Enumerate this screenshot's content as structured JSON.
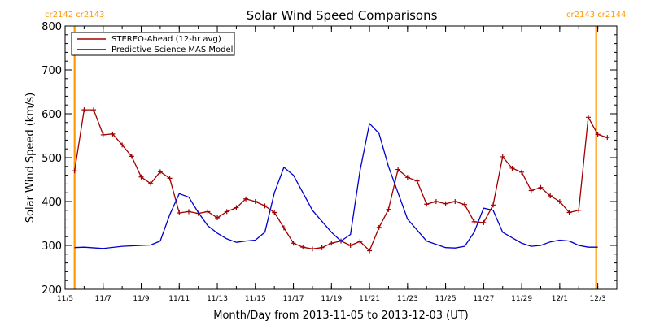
{
  "chart_data": {
    "type": "line",
    "title": "Solar Wind Speed Comparisons",
    "xlabel": "Month/Day from 2013-11-05 to 2013-12-03 (UT)",
    "ylabel": "Solar Wind Speed (km/s)",
    "xlim": [
      "2013-11-05",
      "2013-12-04"
    ],
    "ylim": [
      200,
      800
    ],
    "grid": false,
    "legend_position": "top-left",
    "x_ticks": [
      {
        "date": "2013-11-05",
        "label": "11/5"
      },
      {
        "date": "2013-11-07",
        "label": "11/7"
      },
      {
        "date": "2013-11-09",
        "label": "11/9"
      },
      {
        "date": "2013-11-11",
        "label": "11/11"
      },
      {
        "date": "2013-11-13",
        "label": "11/13"
      },
      {
        "date": "2013-11-15",
        "label": "11/15"
      },
      {
        "date": "2013-11-17",
        "label": "11/17"
      },
      {
        "date": "2013-11-19",
        "label": "11/19"
      },
      {
        "date": "2013-11-21",
        "label": "11/21"
      },
      {
        "date": "2013-11-23",
        "label": "11/23"
      },
      {
        "date": "2013-11-25",
        "label": "11/25"
      },
      {
        "date": "2013-11-27",
        "label": "11/27"
      },
      {
        "date": "2013-11-29",
        "label": "11/29"
      },
      {
        "date": "2013-12-01",
        "label": "12/1"
      },
      {
        "date": "2013-12-03",
        "label": "12/3"
      }
    ],
    "y_ticks": [
      200,
      300,
      400,
      500,
      600,
      700,
      800
    ],
    "carrington_markers": [
      {
        "date": "2013-11-05 12:00",
        "labels": [
          "cr2142",
          "cr2143"
        ]
      },
      {
        "date": "2013-12-02 22:00",
        "labels": [
          "cr2143",
          "cr2144"
        ]
      }
    ],
    "marker_color": "#ff9900",
    "series": [
      {
        "name": "STEREO-Ahead (12-hr avg)",
        "color": "#a00000",
        "marker": "plus",
        "x": [
          "2013-11-05 12:00",
          "2013-11-06 00:00",
          "2013-11-06 12:00",
          "2013-11-07 00:00",
          "2013-11-07 12:00",
          "2013-11-08 00:00",
          "2013-11-08 12:00",
          "2013-11-09 00:00",
          "2013-11-09 12:00",
          "2013-11-10 00:00",
          "2013-11-10 12:00",
          "2013-11-11 00:00",
          "2013-11-11 12:00",
          "2013-11-12 00:00",
          "2013-11-12 12:00",
          "2013-11-13 00:00",
          "2013-11-13 12:00",
          "2013-11-14 00:00",
          "2013-11-14 12:00",
          "2013-11-15 00:00",
          "2013-11-15 12:00",
          "2013-11-16 00:00",
          "2013-11-16 12:00",
          "2013-11-17 00:00",
          "2013-11-17 12:00",
          "2013-11-18 00:00",
          "2013-11-18 12:00",
          "2013-11-19 00:00",
          "2013-11-19 12:00",
          "2013-11-20 00:00",
          "2013-11-20 12:00",
          "2013-11-21 00:00",
          "2013-11-21 12:00",
          "2013-11-22 00:00",
          "2013-11-22 12:00",
          "2013-11-23 00:00",
          "2013-11-23 12:00",
          "2013-11-24 00:00",
          "2013-11-24 12:00",
          "2013-11-25 00:00",
          "2013-11-25 12:00",
          "2013-11-26 00:00",
          "2013-11-26 12:00",
          "2013-11-27 00:00",
          "2013-11-27 12:00",
          "2013-11-28 00:00",
          "2013-11-28 12:00",
          "2013-11-29 00:00",
          "2013-11-29 12:00",
          "2013-11-30 00:00",
          "2013-11-30 12:00",
          "2013-12-01 00:00",
          "2013-12-01 12:00",
          "2013-12-02 00:00",
          "2013-12-02 12:00",
          "2013-12-03 00:00",
          "2013-12-03 12:00"
        ],
        "y": [
          470,
          609,
          609,
          552,
          554,
          529,
          503,
          456,
          441,
          468,
          453,
          374,
          377,
          373,
          377,
          363,
          377,
          386,
          406,
          400,
          390,
          375,
          340,
          305,
          296,
          292,
          295,
          305,
          310,
          300,
          309,
          288,
          341,
          382,
          473,
          455,
          447,
          394,
          400,
          395,
          400,
          393,
          354,
          352,
          392,
          502,
          476,
          467,
          425,
          432,
          413,
          400,
          375,
          380,
          592,
          553,
          546
        ]
      },
      {
        "name": "Predictive Science MAS Model",
        "color": "#0000cc",
        "marker": "none",
        "x": [
          "2013-11-05 12:00",
          "2013-11-06 00:00",
          "2013-11-07 00:00",
          "2013-11-08 00:00",
          "2013-11-09 00:00",
          "2013-11-09 12:00",
          "2013-11-10 00:00",
          "2013-11-10 12:00",
          "2013-11-11 00:00",
          "2013-11-11 12:00",
          "2013-11-12 00:00",
          "2013-11-12 12:00",
          "2013-11-13 00:00",
          "2013-11-13 12:00",
          "2013-11-14 00:00",
          "2013-11-14 12:00",
          "2013-11-15 00:00",
          "2013-11-15 12:00",
          "2013-11-16 00:00",
          "2013-11-16 12:00",
          "2013-11-17 00:00",
          "2013-11-18 00:00",
          "2013-11-19 00:00",
          "2013-11-19 12:00",
          "2013-11-20 00:00",
          "2013-11-20 12:00",
          "2013-11-21 00:00",
          "2013-11-21 12:00",
          "2013-11-22 00:00",
          "2013-11-23 00:00",
          "2013-11-24 00:00",
          "2013-11-25 00:00",
          "2013-11-25 12:00",
          "2013-11-26 00:00",
          "2013-11-26 12:00",
          "2013-11-27 00:00",
          "2013-11-27 12:00",
          "2013-11-28 00:00",
          "2013-11-29 00:00",
          "2013-11-29 12:00",
          "2013-11-30 00:00",
          "2013-11-30 12:00",
          "2013-12-01 00:00",
          "2013-12-01 12:00",
          "2013-12-02 00:00",
          "2013-12-02 12:00",
          "2013-12-03 00:00"
        ],
        "y": [
          295,
          296,
          293,
          298,
          300,
          301,
          310,
          370,
          418,
          410,
          375,
          345,
          328,
          315,
          307,
          310,
          312,
          330,
          420,
          478,
          460,
          380,
          330,
          310,
          325,
          470,
          578,
          555,
          480,
          360,
          310,
          295,
          294,
          298,
          330,
          385,
          380,
          330,
          305,
          298,
          300,
          308,
          312,
          310,
          300,
          296,
          296
        ]
      }
    ]
  }
}
